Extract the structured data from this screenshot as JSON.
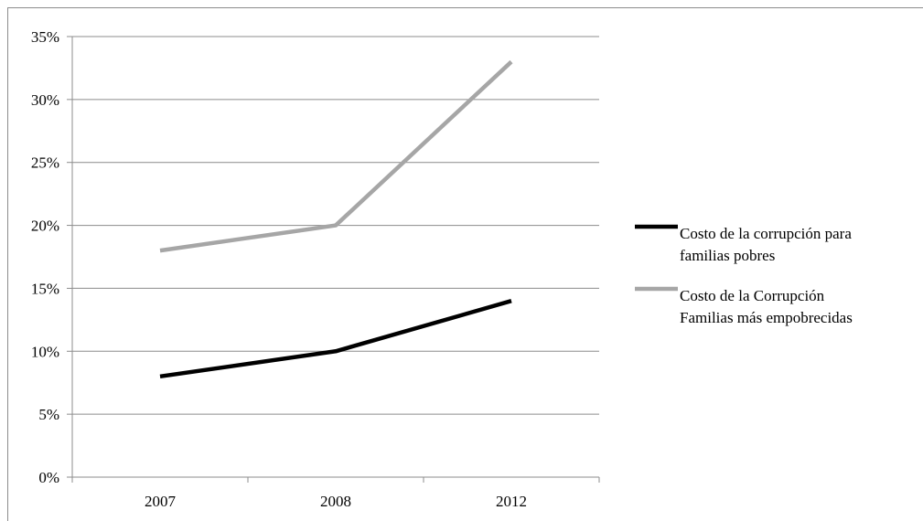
{
  "chart_data": {
    "type": "line",
    "title": "",
    "xlabel": "",
    "ylabel": "",
    "categories": [
      "2007",
      "2008",
      "2012"
    ],
    "ylim": [
      0,
      35
    ],
    "y_ticks": [
      "0%",
      "5%",
      "10%",
      "15%",
      "20%",
      "25%",
      "30%",
      "35%"
    ],
    "grid": true,
    "legend_position": "right",
    "series": [
      {
        "name": "Costo de la corrupción para familias pobres",
        "legend_lines": [
          "Costo de la corrupción para",
          "familias pobres"
        ],
        "values": [
          8,
          10,
          14
        ],
        "color": "#000000"
      },
      {
        "name": "Costo de la Corrupción Familias más empobrecidas",
        "legend_lines": [
          "Costo de la Corrupción",
          "Familias más empobrecidas"
        ],
        "values": [
          18,
          20,
          33
        ],
        "color": "#a6a6a6"
      }
    ]
  }
}
